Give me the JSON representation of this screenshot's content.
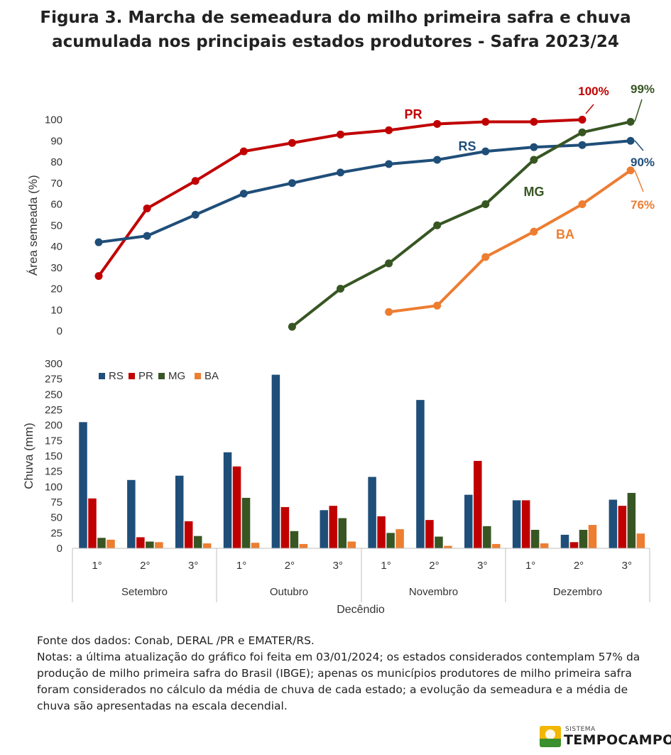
{
  "title": {
    "line1": "Figura 3. Marcha de semeadura do milho primeira safra e chuva",
    "line2": "acumulada nos principais estados produtores - Safra 2023/24"
  },
  "colors": {
    "RS": "#1f4e79",
    "PR": "#c00000",
    "MG": "#375623",
    "BA": "#ed7d31"
  },
  "chart_data": [
    {
      "type": "line",
      "ylabel": "Área semeada (%)",
      "ylim": [
        0,
        100
      ],
      "yticks": [
        0,
        10,
        20,
        30,
        40,
        50,
        60,
        70,
        80,
        90,
        100
      ],
      "x_positions": [
        "Set 1°",
        "Set 2°",
        "Set 3°",
        "Out 1°",
        "Out 2°",
        "Out 3°",
        "Nov 1°",
        "Nov 2°",
        "Nov 3°",
        "Dez 1°",
        "Dez 2°",
        "Dez 3°"
      ],
      "series": [
        {
          "name": "PR",
          "values": [
            26,
            58,
            71,
            85,
            89,
            93,
            95,
            98,
            99,
            99,
            100,
            null
          ],
          "end_label": "100%"
        },
        {
          "name": "RS",
          "values": [
            42,
            45,
            55,
            65,
            70,
            75,
            79,
            81,
            85,
            87,
            88,
            90
          ],
          "end_label": "90%"
        },
        {
          "name": "MG",
          "values": [
            null,
            null,
            null,
            null,
            2,
            20,
            32,
            50,
            60,
            81,
            94,
            99
          ],
          "end_label": "99%"
        },
        {
          "name": "BA",
          "values": [
            null,
            null,
            null,
            null,
            null,
            null,
            9,
            12,
            35,
            47,
            60,
            76
          ],
          "end_label": "76%"
        }
      ]
    },
    {
      "type": "bar",
      "ylabel": "Chuva (mm)",
      "xlabel": "Decêndio",
      "ylim": [
        0,
        300
      ],
      "yticks": [
        0,
        25,
        50,
        75,
        100,
        125,
        150,
        175,
        200,
        225,
        250,
        275,
        300
      ],
      "legend": [
        "RS",
        "PR",
        "MG",
        "BA"
      ],
      "legend_position": "top-left",
      "decendios": [
        "1°",
        "2°",
        "3°",
        "1°",
        "2°",
        "3°",
        "1°",
        "2°",
        "3°",
        "1°",
        "2°",
        "3°"
      ],
      "months": [
        "Setembro",
        "Outubro",
        "Novembro",
        "Dezembro"
      ],
      "series": [
        {
          "name": "RS",
          "values": [
            205,
            111,
            118,
            156,
            282,
            62,
            116,
            241,
            87,
            78,
            22,
            79
          ]
        },
        {
          "name": "PR",
          "values": [
            81,
            18,
            44,
            133,
            67,
            69,
            52,
            46,
            142,
            78,
            10,
            69
          ]
        },
        {
          "name": "MG",
          "values": [
            17,
            11,
            20,
            82,
            28,
            49,
            25,
            19,
            36,
            30,
            30,
            90
          ]
        },
        {
          "name": "BA",
          "values": [
            14,
            10,
            8,
            9,
            7,
            11,
            31,
            4,
            7,
            8,
            38,
            24
          ]
        }
      ]
    }
  ],
  "notes": {
    "source": "Fonte dos dados: Conab, DERAL /PR e EMATER/RS.",
    "notes": "Notas: a última atualização do gráfico foi feita em 03/01/2024; os estados considerados contemplam 57% da produção de milho primeira safra do Brasil (IBGE); apenas os municípios produtores de milho primeira safra foram considerados no cálculo da média de chuva de cada estado; a evolução da semeadura e a média de chuva são apresentadas na escala decendial."
  },
  "logo": {
    "small": "SISTEMA",
    "big": "TEMPOCAMPO"
  }
}
